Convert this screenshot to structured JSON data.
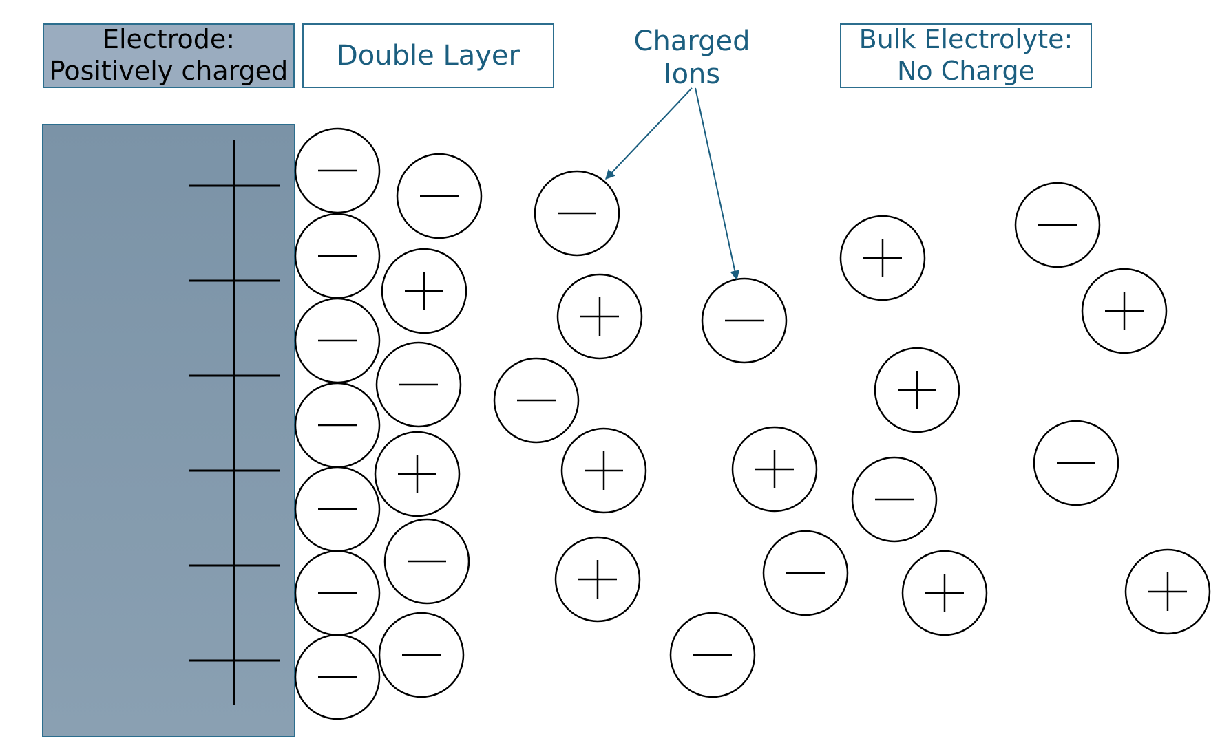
{
  "labels": {
    "electrode_line1": "Electrode:",
    "electrode_line2": "Positively charged",
    "double_layer": "Double Layer",
    "charged_ions_line1": "Charged",
    "charged_ions_line2": "Ions",
    "bulk_line1": "Bulk Electrolyte:",
    "bulk_line2": "No Charge"
  },
  "colors": {
    "electrode_fill": "#7f97aa",
    "electrode_border": "#2c6e8e",
    "label_text": "#1b5e7f",
    "ion_stroke": "#000000",
    "arrow": "#1b5e7f"
  },
  "electrode": {
    "surface_charges": [
      "+",
      "+",
      "+",
      "+",
      "+",
      "+"
    ]
  },
  "ions": {
    "adsorbed_layer": [
      "-",
      "-",
      "-",
      "-",
      "-",
      "-",
      "-"
    ],
    "outer_layer": [
      "-",
      "+",
      "-",
      "+",
      "-",
      "-"
    ],
    "diffuse_and_bulk": [
      "-",
      "+",
      "+",
      "-",
      "+",
      "-",
      "-",
      "+",
      "-",
      "+",
      "+",
      "-",
      "+",
      "-",
      "+",
      "-",
      "+",
      "-",
      "-"
    ]
  }
}
